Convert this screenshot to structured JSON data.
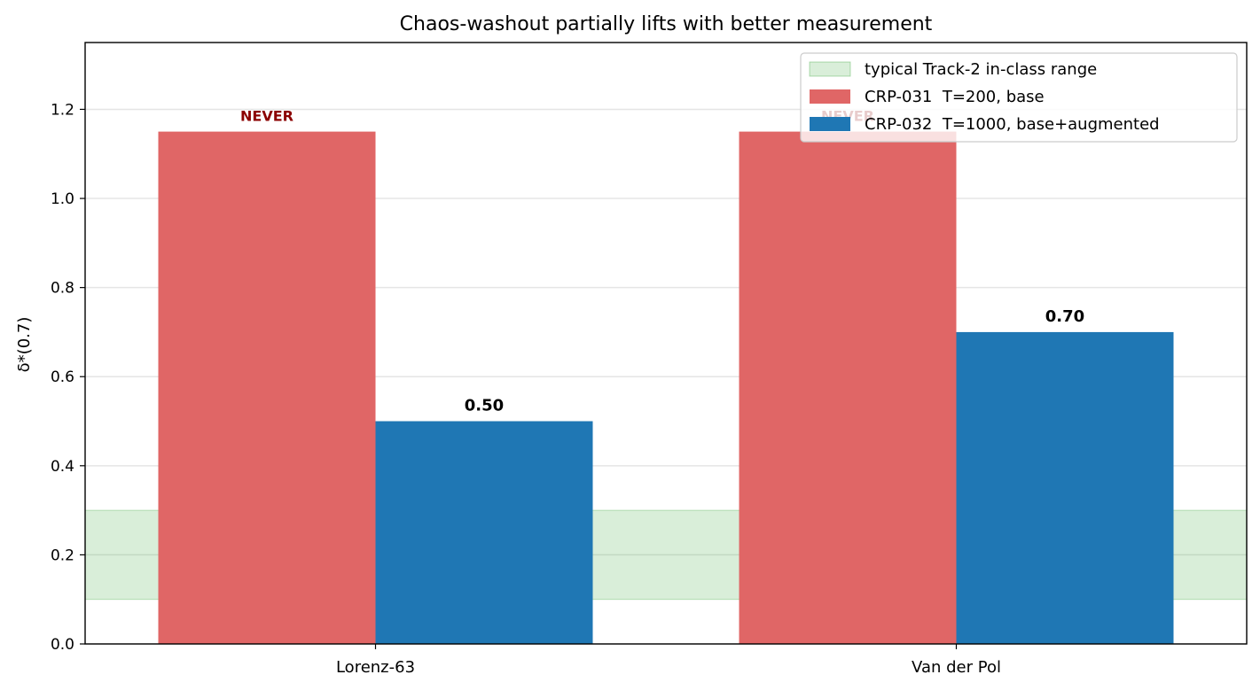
{
  "chart_data": {
    "type": "bar",
    "title": "Chaos-washout partially lifts with better measurement",
    "xlabel": "",
    "ylabel": "δ*(0.7)",
    "ylim": [
      0,
      1.35
    ],
    "yticks": [
      "0.0",
      "0.2",
      "0.4",
      "0.6",
      "0.8",
      "1.0",
      "1.2"
    ],
    "categories": [
      "Lorenz-63",
      "Van der Pol"
    ],
    "grid": "y",
    "legend_position": "top-right",
    "band": {
      "label": "typical Track-2 in-class range",
      "y0": 0.1,
      "y1": 0.3,
      "color": "#2ca02c"
    },
    "series": [
      {
        "name": "CRP-031  T=200, base",
        "color": "#e06666",
        "values": [
          1.15,
          1.15
        ],
        "labels": [
          "NEVER",
          "NEVER"
        ],
        "label_color": "#8b0000"
      },
      {
        "name": "CRP-032  T=1000, base+augmented",
        "color": "#1f77b4",
        "values": [
          0.5,
          0.7
        ],
        "labels": [
          "0.50",
          "0.70"
        ],
        "label_color": "#000000"
      }
    ]
  }
}
